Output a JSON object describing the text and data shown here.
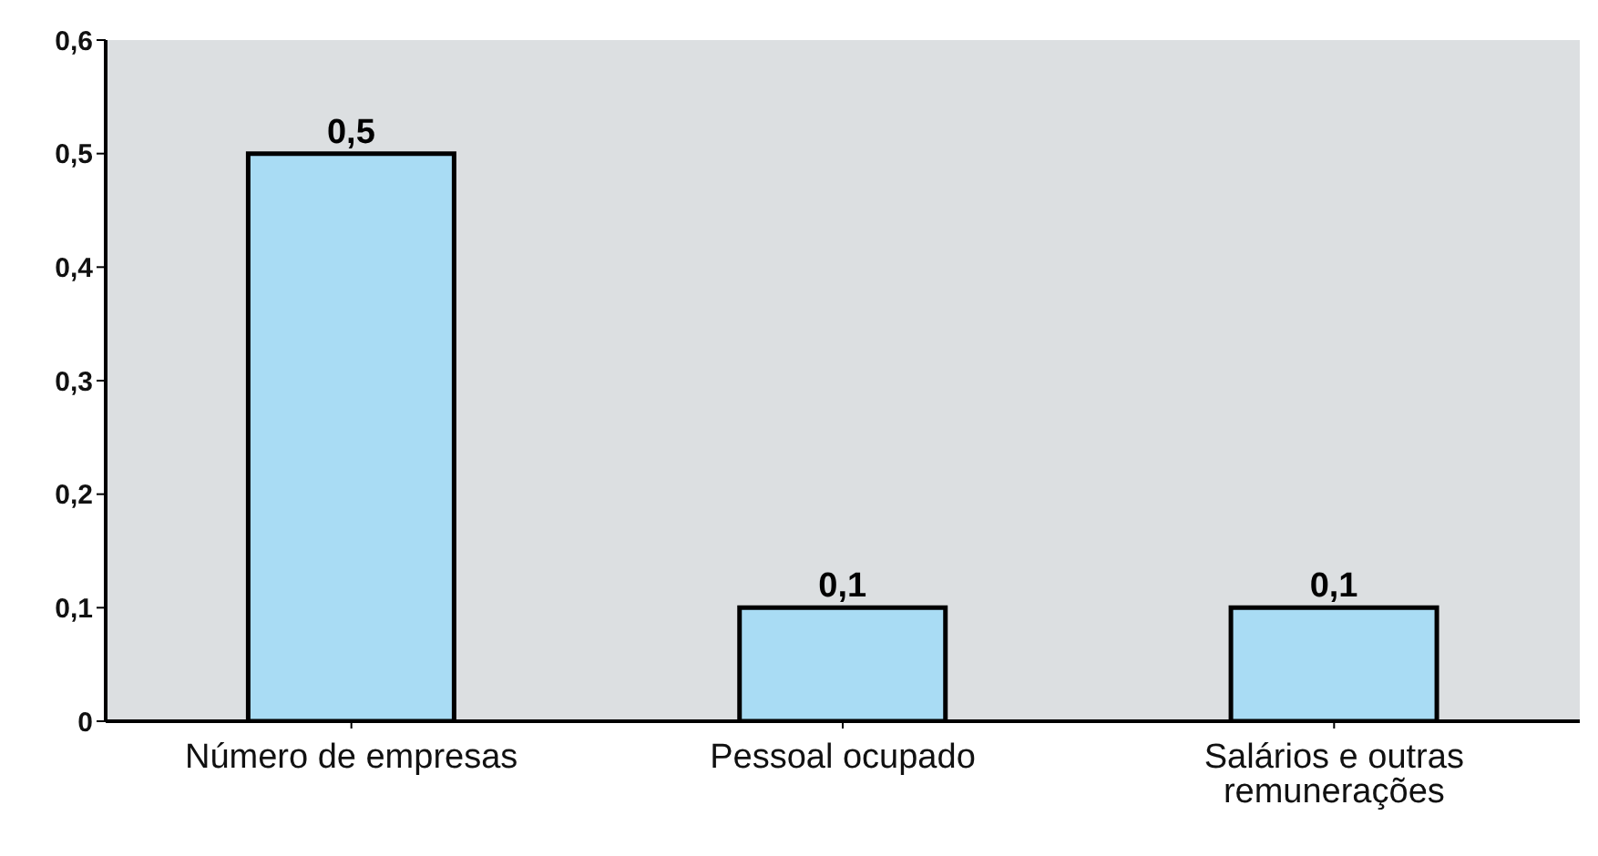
{
  "chart_data": {
    "type": "bar",
    "categories": [
      "Número de empresas",
      "Pessoal ocupado",
      "Salários e outras remunerações"
    ],
    "values": [
      0.5,
      0.1,
      0.1
    ],
    "color": "#a9dcf4",
    "value_labels": [
      "0,5",
      "0,1",
      "0,1"
    ],
    "ylim": [
      0,
      0.6
    ],
    "yticks": [
      {
        "value": 0,
        "label": "0"
      },
      {
        "value": 0.1,
        "label": "0,1"
      },
      {
        "value": 0.2,
        "label": "0,2"
      },
      {
        "value": 0.3,
        "label": "0,3"
      },
      {
        "value": 0.4,
        "label": "0,4"
      },
      {
        "value": 0.5,
        "label": "0,5"
      },
      {
        "value": 0.6,
        "label": "0,6"
      }
    ],
    "grid": false,
    "legend": false
  }
}
